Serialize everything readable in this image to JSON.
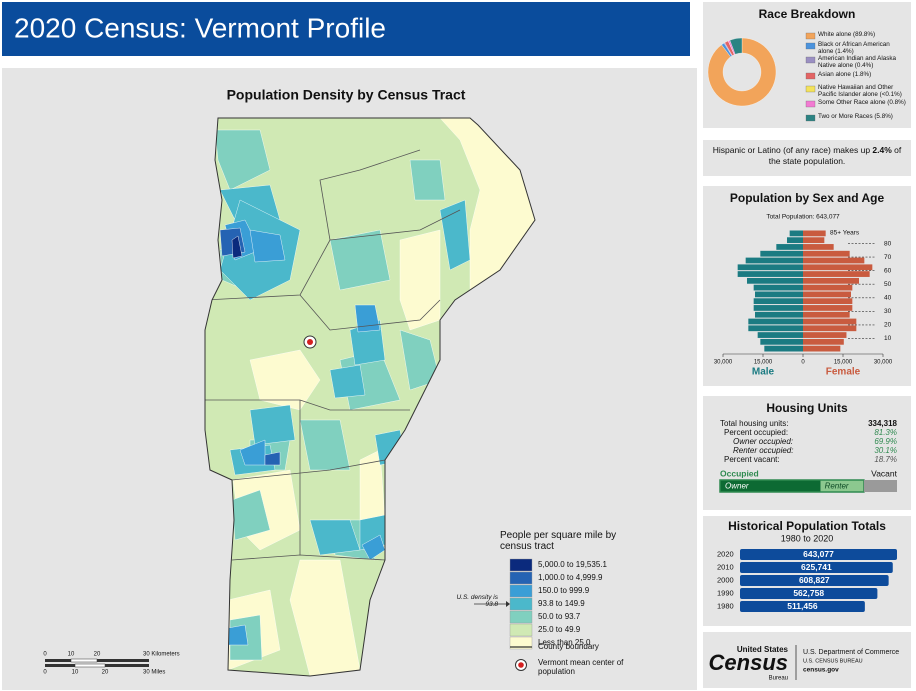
{
  "header": {
    "title": "2020 Census: Vermont Profile"
  },
  "map": {
    "title": "Population Density by Census Tract",
    "legend_title": "People per square mile by census tract",
    "legend": [
      {
        "label": "5,000.0 to 19,535.1",
        "color": "#0b2a7d"
      },
      {
        "label": "1,000.0 to 4,999.9",
        "color": "#2563b3"
      },
      {
        "label": "150.0 to 999.9",
        "color": "#3a9ed6"
      },
      {
        "label": "93.8 to 149.9",
        "color": "#4bb8cb"
      },
      {
        "label": "50.0 to 93.7",
        "color": "#80d0bf"
      },
      {
        "label": "25.0 to 49.9",
        "color": "#d0e9b4"
      },
      {
        "label": "Less than 25.0",
        "color": "#fdfbd0"
      }
    ],
    "us_density_note": "U.S. density is 93.8",
    "county_boundary": "County boundary",
    "mean_center": "Vermont mean center of population",
    "scale_km": {
      "ticks": [
        "0",
        "10",
        "20"
      ],
      "end_label": "30 Kilometers"
    },
    "scale_mi": {
      "ticks": [
        "0",
        "10",
        "20"
      ],
      "end_label": "30 Miles"
    }
  },
  "chart_data": [
    {
      "type": "donut",
      "title": "Race Breakdown",
      "categories": [
        "White alone (89.8%)",
        "Black or African American alone (1.4%)",
        "American Indian and Alaska Native alone (0.4%)",
        "Asian alone (1.8%)",
        "Native Hawaiian and Other Pacific Islander alone (<0.1%)",
        "Some Other Race alone (0.8%)",
        "Two or More Races (5.8%)"
      ],
      "values": [
        89.8,
        1.4,
        0.4,
        1.8,
        0.05,
        0.8,
        5.8
      ],
      "colors": [
        "#f2a45a",
        "#4b93dd",
        "#9a8fc2",
        "#e36464",
        "#f3e25a",
        "#f27ad2",
        "#2b8383"
      ]
    },
    {
      "type": "pyramid",
      "title": "Population by Sex and Age",
      "subtitle": "Total Population: 643,077",
      "x": [
        0,
        5,
        10,
        15,
        20,
        25,
        30,
        35,
        40,
        45,
        50,
        55,
        60,
        65,
        70,
        75,
        80,
        85
      ],
      "top_label": "85+ Years",
      "series": [
        {
          "name": "Male",
          "color": "#1b7b82",
          "values": [
            14500,
            16000,
            17000,
            20500,
            20500,
            18000,
            18500,
            18500,
            18000,
            18500,
            21000,
            24500,
            24500,
            21500,
            16000,
            10000,
            6000,
            5000
          ]
        },
        {
          "name": "Female",
          "color": "#c95b3f",
          "values": [
            14000,
            15300,
            16300,
            20000,
            20000,
            17500,
            18500,
            18500,
            18000,
            18500,
            21000,
            25000,
            26000,
            23000,
            17500,
            11500,
            8000,
            8500
          ]
        }
      ],
      "xlim": [
        0,
        30000
      ],
      "xticks": [
        {
          "value": 30000,
          "label": "30,000"
        },
        {
          "value": 15000,
          "label": "15,000"
        },
        0
      ],
      "ylim": [
        0,
        90
      ],
      "yticks": [
        10,
        20,
        30,
        40,
        50,
        60,
        70,
        80
      ]
    },
    {
      "type": "hbar",
      "title": "Historical Population Totals",
      "subtitle": "1980 to 2020",
      "categories": [
        "2020",
        "2010",
        "2000",
        "1990",
        "1980"
      ],
      "values": [
        643077,
        625741,
        608827,
        562758,
        511456
      ],
      "value_labels": [
        "643,077",
        "625,741",
        "608,827",
        "562,758",
        "511,456"
      ],
      "color": "#0d4b9b"
    }
  ],
  "hispanic": {
    "text_before": "Hispanic or Latino (of any race) makes up",
    "highlight": "2.4%",
    "text_after": "of the state population."
  },
  "housing": {
    "title": "Housing Units",
    "total": {
      "label": "Total housing units:",
      "value": "334,318"
    },
    "rows": [
      {
        "label": "Percent occupied:",
        "value": 81.3,
        "value_label": "81.3%"
      },
      {
        "label": "Owner occupied:",
        "value": 69.9,
        "value_label": "69.9%"
      },
      {
        "label": "Renter occupied:",
        "value": 30.1,
        "value_label": "30.1%"
      },
      {
        "label": "Percent vacant:",
        "value": 18.7,
        "value_label": "18.7%"
      }
    ],
    "bar_labels": {
      "occupied": "Occupied",
      "vacant": "Vacant",
      "owner": "Owner",
      "renter": "Renter"
    }
  },
  "footer": {
    "logo_top": "United States",
    "logo_main": "Census",
    "logo_bottom": "Bureau",
    "dept": "U.S. Department of Commerce",
    "bureau": "U.S. CENSUS BUREAU",
    "site": "census.gov"
  }
}
